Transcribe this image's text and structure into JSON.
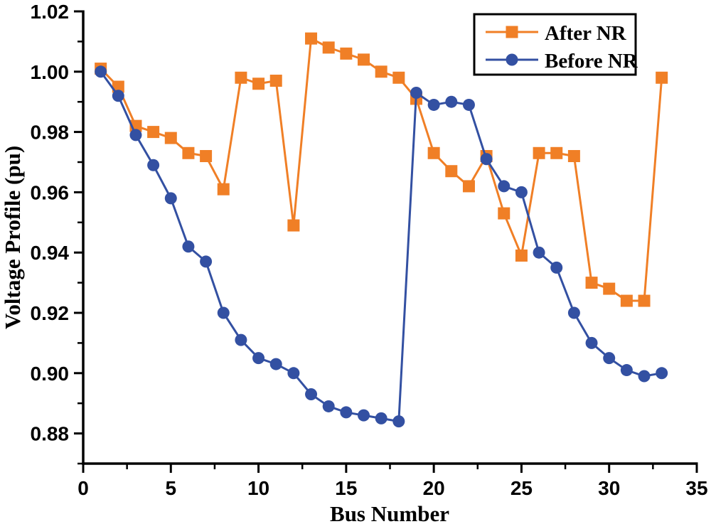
{
  "figure": {
    "background": "#ffffff",
    "axis_color": "#000000"
  },
  "chart_data": {
    "type": "line",
    "title": "",
    "xlabel": "Bus Number",
    "ylabel": "Voltage Profile (pu)",
    "xlim": [
      0,
      35
    ],
    "ylim": [
      0.87,
      1.02
    ],
    "grid": false,
    "legend_position": "top-right",
    "x_ticks": [
      0,
      5,
      10,
      15,
      20,
      25,
      30,
      35
    ],
    "x_minor_ticks": [
      2.5,
      7.5,
      12.5,
      17.5,
      22.5,
      27.5,
      32.5
    ],
    "y_ticks": [
      0.88,
      0.9,
      0.92,
      0.94,
      0.96,
      0.98,
      1.0,
      1.02
    ],
    "y_tick_labels": [
      "0.88",
      "0.90",
      "0.92",
      "0.94",
      "0.96",
      "0.98",
      "1.00",
      "1.02"
    ],
    "y_minor_ticks": [
      0.87,
      0.89,
      0.91,
      0.93,
      0.95,
      0.97,
      0.99,
      1.01
    ],
    "x": [
      1,
      2,
      3,
      4,
      5,
      6,
      7,
      8,
      9,
      10,
      11,
      12,
      13,
      14,
      15,
      16,
      17,
      18,
      19,
      20,
      21,
      22,
      23,
      24,
      25,
      26,
      27,
      28,
      29,
      30,
      31,
      32,
      33
    ],
    "series": [
      {
        "name": "After NR",
        "color": "#f07f26",
        "marker": "square",
        "values": [
          1.001,
          0.995,
          0.982,
          0.98,
          0.978,
          0.973,
          0.972,
          0.961,
          0.998,
          0.996,
          0.997,
          0.949,
          1.011,
          1.008,
          1.006,
          1.004,
          1.0,
          0.998,
          0.991,
          0.973,
          0.967,
          0.962,
          0.972,
          0.953,
          0.939,
          0.973,
          0.973,
          0.972,
          0.93,
          0.928,
          0.924,
          0.924,
          0.998
        ]
      },
      {
        "name": "Before NR",
        "color": "#3350a2",
        "marker": "circle",
        "values": [
          1.0,
          0.992,
          0.979,
          0.969,
          0.958,
          0.942,
          0.937,
          0.92,
          0.911,
          0.905,
          0.903,
          0.9,
          0.893,
          0.889,
          0.887,
          0.886,
          0.885,
          0.884,
          0.993,
          0.989,
          0.99,
          0.989,
          0.971,
          0.962,
          0.96,
          0.94,
          0.935,
          0.92,
          0.91,
          0.905,
          0.901,
          0.899,
          0.9
        ]
      }
    ]
  }
}
